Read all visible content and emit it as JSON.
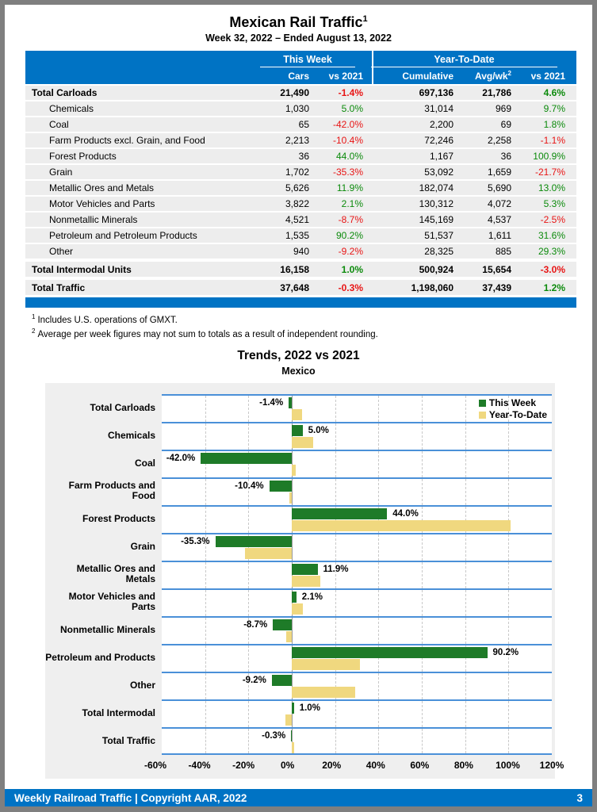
{
  "page": {
    "title": "Mexican Rail Traffic",
    "title_sup": "1",
    "subtitle": "Week 32, 2022 – Ended August 13, 2022",
    "footer_left": "Weekly Railroad Traffic | Copyright AAR, 2022",
    "footer_page": "3"
  },
  "table": {
    "group_this_week": "This Week",
    "group_ytd": "Year-To-Date",
    "col_cars": "Cars",
    "col_wk_vs": "vs 2021",
    "col_cumulative": "Cumulative",
    "col_avg": "Avg/wk",
    "col_avg_sup": "2",
    "col_ytd_vs": "vs 2021",
    "rows": [
      {
        "label": "Total Carloads",
        "indent": false,
        "bold": true,
        "gap_before": false,
        "cars": "21,490",
        "wk_vs": "-1.4%",
        "cumulative": "697,136",
        "avg_wk": "21,786",
        "ytd_vs": "4.6%"
      },
      {
        "label": "Chemicals",
        "indent": true,
        "bold": false,
        "gap_before": false,
        "cars": "1,030",
        "wk_vs": "5.0%",
        "cumulative": "31,014",
        "avg_wk": "969",
        "ytd_vs": "9.7%"
      },
      {
        "label": "Coal",
        "indent": true,
        "bold": false,
        "gap_before": false,
        "cars": "65",
        "wk_vs": "-42.0%",
        "cumulative": "2,200",
        "avg_wk": "69",
        "ytd_vs": "1.8%"
      },
      {
        "label": "Farm Products excl. Grain, and Food",
        "indent": true,
        "bold": false,
        "gap_before": false,
        "cars": "2,213",
        "wk_vs": "-10.4%",
        "cumulative": "72,246",
        "avg_wk": "2,258",
        "ytd_vs": "-1.1%"
      },
      {
        "label": "Forest Products",
        "indent": true,
        "bold": false,
        "gap_before": false,
        "cars": "36",
        "wk_vs": "44.0%",
        "cumulative": "1,167",
        "avg_wk": "36",
        "ytd_vs": "100.9%"
      },
      {
        "label": "Grain",
        "indent": true,
        "bold": false,
        "gap_before": false,
        "cars": "1,702",
        "wk_vs": "-35.3%",
        "cumulative": "53,092",
        "avg_wk": "1,659",
        "ytd_vs": "-21.7%"
      },
      {
        "label": "Metallic Ores and Metals",
        "indent": true,
        "bold": false,
        "gap_before": false,
        "cars": "5,626",
        "wk_vs": "11.9%",
        "cumulative": "182,074",
        "avg_wk": "5,690",
        "ytd_vs": "13.0%"
      },
      {
        "label": "Motor Vehicles and Parts",
        "indent": true,
        "bold": false,
        "gap_before": false,
        "cars": "3,822",
        "wk_vs": "2.1%",
        "cumulative": "130,312",
        "avg_wk": "4,072",
        "ytd_vs": "5.3%"
      },
      {
        "label": "Nonmetallic Minerals",
        "indent": true,
        "bold": false,
        "gap_before": false,
        "cars": "4,521",
        "wk_vs": "-8.7%",
        "cumulative": "145,169",
        "avg_wk": "4,537",
        "ytd_vs": "-2.5%"
      },
      {
        "label": "Petroleum and Petroleum Products",
        "indent": true,
        "bold": false,
        "gap_before": false,
        "cars": "1,535",
        "wk_vs": "90.2%",
        "cumulative": "51,537",
        "avg_wk": "1,611",
        "ytd_vs": "31.6%"
      },
      {
        "label": "Other",
        "indent": true,
        "bold": false,
        "gap_before": false,
        "cars": "940",
        "wk_vs": "-9.2%",
        "cumulative": "28,325",
        "avg_wk": "885",
        "ytd_vs": "29.3%"
      },
      {
        "label": "Total Intermodal Units",
        "indent": false,
        "bold": true,
        "gap_before": true,
        "cars": "16,158",
        "wk_vs": "1.0%",
        "cumulative": "500,924",
        "avg_wk": "15,654",
        "ytd_vs": "-3.0%"
      },
      {
        "label": "Total Traffic",
        "indent": false,
        "bold": true,
        "gap_before": true,
        "cars": "37,648",
        "wk_vs": "-0.3%",
        "cumulative": "1,198,060",
        "avg_wk": "37,439",
        "ytd_vs": "1.2%"
      }
    ]
  },
  "footnotes": [
    {
      "sup": "1",
      "text": "Includes U.S. operations of GMXT."
    },
    {
      "sup": "2",
      "text": "Average per week figures may not sum to totals as a result of independent rounding."
    }
  ],
  "chart_data": {
    "type": "bar",
    "orientation": "horizontal",
    "title": "Trends, 2022 vs 2021",
    "subtitle": "Mexico",
    "categories": [
      "Total Carloads",
      "Chemicals",
      "Coal",
      "Farm Products and Food",
      "Forest Products",
      "Grain",
      "Metallic Ores and Metals",
      "Motor Vehicles and Parts",
      "Nonmetallic Minerals",
      "Petroleum and Products",
      "Other",
      "Total Intermodal",
      "Total Traffic"
    ],
    "series": [
      {
        "name": "This Week",
        "color": "#1e7b28",
        "values": [
          -1.4,
          5.0,
          -42.0,
          -10.4,
          44.0,
          -35.3,
          11.9,
          2.1,
          -8.7,
          90.2,
          -9.2,
          1.0,
          -0.3
        ]
      },
      {
        "name": "Year-To-Date",
        "color": "#f0d87f",
        "values": [
          4.6,
          9.7,
          1.8,
          -1.1,
          100.9,
          -21.7,
          13.0,
          5.3,
          -2.5,
          31.6,
          29.3,
          -3.0,
          1.2
        ]
      }
    ],
    "bar_labels": [
      "-1.4%",
      "5.0%",
      "-42.0%",
      "-10.4%",
      "44.0%",
      "-35.3%",
      "11.9%",
      "2.1%",
      "-8.7%",
      "90.2%",
      "-9.2%",
      "1.0%",
      "-0.3%"
    ],
    "xlim": [
      -60,
      120
    ],
    "xticks": [
      {
        "value": -60,
        "label": "-60%"
      },
      {
        "value": -40,
        "label": "-40%"
      },
      {
        "value": -20,
        "label": "-20%"
      },
      {
        "value": 0,
        "label": "0%"
      },
      {
        "value": 20,
        "label": "20%"
      },
      {
        "value": 40,
        "label": "40%"
      },
      {
        "value": 60,
        "label": "60%"
      },
      {
        "value": 80,
        "label": "80%"
      },
      {
        "value": 100,
        "label": "100%"
      },
      {
        "value": 120,
        "label": "120%"
      }
    ],
    "gridline_values": [
      -40,
      -20,
      20,
      40,
      60,
      80,
      100
    ],
    "grid": "dashed-vertical",
    "legend_position": "top-right"
  },
  "colors": {
    "header_blue": "#0073c4",
    "band_line_blue": "#4a90d8",
    "positive_green": "#0b8a0b",
    "negative_red": "#e81414",
    "bar_green": "#1e7b28",
    "bar_tan": "#f0d87f",
    "row_gray": "#ededed",
    "chart_bg_gray": "#efefef",
    "frame_gray": "#7f7f7f"
  }
}
